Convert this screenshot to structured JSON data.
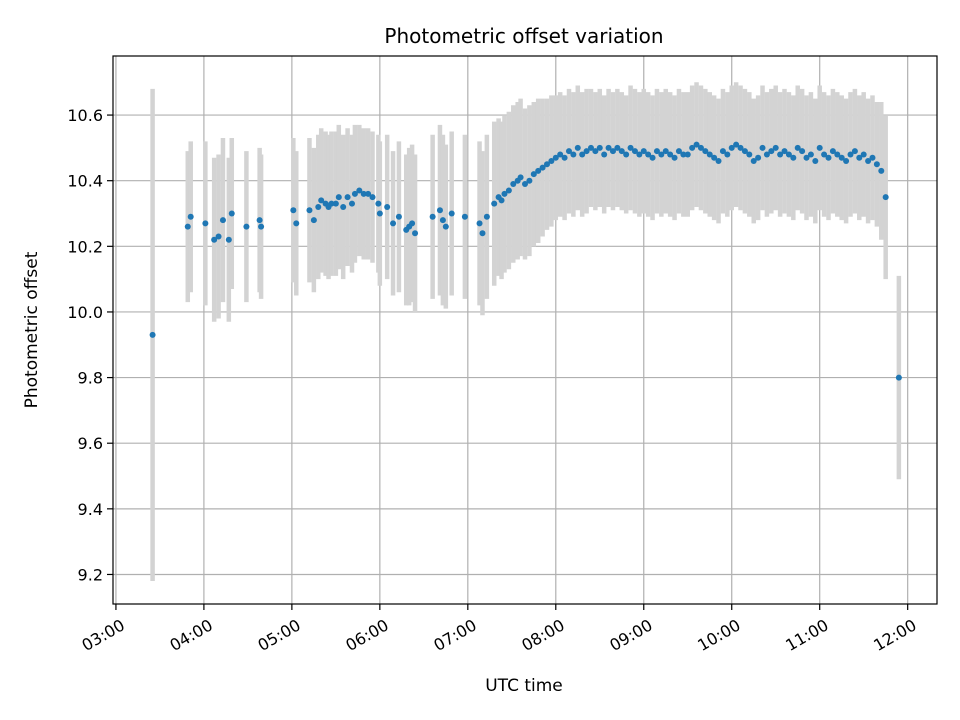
{
  "chart_data": {
    "type": "scatter",
    "title": "Photometric offset variation",
    "xlabel": "UTC time",
    "ylabel": "Photometric offset",
    "xlim": [
      "02:58",
      "12:20"
    ],
    "ylim": [
      9.11,
      10.78
    ],
    "x_ticks": [
      "03:00",
      "04:00",
      "05:00",
      "06:00",
      "07:00",
      "08:00",
      "09:00",
      "10:00",
      "11:00",
      "12:00"
    ],
    "y_ticks": [
      "9.2",
      "9.4",
      "9.6",
      "9.8",
      "10.0",
      "10.2",
      "10.4",
      "10.6"
    ],
    "grid": true,
    "colors": {
      "point": "#1f77b4",
      "errorbar": "#d3d3d3",
      "grid": "#b0b0b0"
    },
    "series": [
      {
        "x": [
          "03:25",
          "03:49",
          "03:51",
          "04:01",
          "04:07",
          "04:10",
          "04:13",
          "04:17",
          "04:19",
          "04:29",
          "04:38",
          "04:39",
          "05:01",
          "05:03",
          "05:12",
          "05:15",
          "05:18",
          "05:20",
          "05:23",
          "05:25",
          "05:27",
          "05:30",
          "05:32",
          "05:35",
          "05:38",
          "05:41",
          "05:43",
          "05:46",
          "05:49",
          "05:52",
          "05:55",
          "05:59",
          "06:00",
          "06:05",
          "06:09",
          "06:13",
          "06:18",
          "06:20",
          "06:22",
          "06:24",
          "06:36",
          "06:41",
          "06:43",
          "06:45",
          "06:49",
          "06:58",
          "07:08",
          "07:10",
          "07:13",
          "07:18",
          "07:21",
          "07:23",
          "07:25",
          "07:28",
          "07:31",
          "07:34",
          "07:36",
          "07:39",
          "07:42",
          "07:45",
          "07:48",
          "07:51",
          "07:54",
          "07:57",
          "08:00",
          "08:03",
          "08:06",
          "08:09",
          "08:12",
          "08:15",
          "08:18",
          "08:21",
          "08:24",
          "08:27",
          "08:30",
          "08:33",
          "08:36",
          "08:39",
          "08:42",
          "08:45",
          "08:48",
          "08:51",
          "08:54",
          "08:57",
          "09:00",
          "09:03",
          "09:06",
          "09:09",
          "09:12",
          "09:15",
          "09:18",
          "09:21",
          "09:24",
          "09:27",
          "09:30",
          "09:33",
          "09:36",
          "09:39",
          "09:42",
          "09:45",
          "09:48",
          "09:51",
          "09:54",
          "09:57",
          "10:00",
          "10:03",
          "10:06",
          "10:09",
          "10:12",
          "10:15",
          "10:18",
          "10:21",
          "10:24",
          "10:27",
          "10:30",
          "10:33",
          "10:36",
          "10:39",
          "10:42",
          "10:45",
          "10:48",
          "10:51",
          "10:54",
          "10:57",
          "11:00",
          "11:03",
          "11:06",
          "11:09",
          "11:12",
          "11:15",
          "11:18",
          "11:21",
          "11:24",
          "11:27",
          "11:30",
          "11:33",
          "11:36",
          "11:39",
          "11:42",
          "11:45",
          "11:54"
        ],
        "y": [
          9.93,
          10.26,
          10.29,
          10.27,
          10.22,
          10.23,
          10.28,
          10.22,
          10.3,
          10.26,
          10.28,
          10.26,
          10.31,
          10.27,
          10.31,
          10.28,
          10.32,
          10.34,
          10.33,
          10.32,
          10.33,
          10.33,
          10.35,
          10.32,
          10.35,
          10.33,
          10.36,
          10.37,
          10.36,
          10.36,
          10.35,
          10.33,
          10.3,
          10.32,
          10.27,
          10.29,
          10.25,
          10.26,
          10.27,
          10.24,
          10.29,
          10.31,
          10.28,
          10.26,
          10.3,
          10.29,
          10.27,
          10.24,
          10.29,
          10.33,
          10.35,
          10.34,
          10.36,
          10.37,
          10.39,
          10.4,
          10.41,
          10.39,
          10.4,
          10.42,
          10.43,
          10.44,
          10.45,
          10.46,
          10.47,
          10.48,
          10.47,
          10.49,
          10.48,
          10.5,
          10.48,
          10.49,
          10.5,
          10.49,
          10.5,
          10.48,
          10.5,
          10.49,
          10.5,
          10.49,
          10.48,
          10.5,
          10.49,
          10.48,
          10.49,
          10.48,
          10.47,
          10.49,
          10.48,
          10.49,
          10.48,
          10.47,
          10.49,
          10.48,
          10.48,
          10.5,
          10.51,
          10.5,
          10.49,
          10.48,
          10.47,
          10.46,
          10.49,
          10.48,
          10.5,
          10.51,
          10.5,
          10.49,
          10.48,
          10.46,
          10.47,
          10.5,
          10.48,
          10.49,
          10.5,
          10.48,
          10.49,
          10.48,
          10.47,
          10.5,
          10.49,
          10.47,
          10.48,
          10.46,
          10.5,
          10.48,
          10.47,
          10.49,
          10.48,
          10.47,
          10.46,
          10.48,
          10.49,
          10.47,
          10.48,
          10.46,
          10.47,
          10.45,
          10.43,
          10.35,
          9.8
        ],
        "yerr": [
          0.75,
          0.23,
          0.23,
          0.25,
          0.25,
          0.25,
          0.25,
          0.25,
          0.23,
          0.23,
          0.22,
          0.22,
          0.22,
          0.22,
          0.22,
          0.22,
          0.22,
          0.22,
          0.22,
          0.22,
          0.22,
          0.22,
          0.22,
          0.22,
          0.21,
          0.21,
          0.21,
          0.2,
          0.2,
          0.2,
          0.2,
          0.21,
          0.22,
          0.22,
          0.22,
          0.23,
          0.23,
          0.24,
          0.24,
          0.24,
          0.25,
          0.26,
          0.26,
          0.25,
          0.25,
          0.25,
          0.25,
          0.25,
          0.25,
          0.25,
          0.24,
          0.24,
          0.24,
          0.24,
          0.24,
          0.24,
          0.24,
          0.23,
          0.23,
          0.22,
          0.22,
          0.21,
          0.2,
          0.2,
          0.19,
          0.19,
          0.19,
          0.19,
          0.19,
          0.19,
          0.19,
          0.19,
          0.18,
          0.18,
          0.18,
          0.18,
          0.18,
          0.18,
          0.18,
          0.18,
          0.18,
          0.19,
          0.19,
          0.19,
          0.19,
          0.19,
          0.19,
          0.19,
          0.19,
          0.19,
          0.19,
          0.19,
          0.19,
          0.19,
          0.19,
          0.19,
          0.19,
          0.19,
          0.19,
          0.19,
          0.19,
          0.19,
          0.19,
          0.19,
          0.19,
          0.19,
          0.19,
          0.19,
          0.19,
          0.19,
          0.19,
          0.19,
          0.19,
          0.19,
          0.19,
          0.19,
          0.19,
          0.19,
          0.19,
          0.19,
          0.19,
          0.19,
          0.19,
          0.19,
          0.19,
          0.19,
          0.19,
          0.19,
          0.19,
          0.19,
          0.19,
          0.19,
          0.19,
          0.19,
          0.19,
          0.19,
          0.19,
          0.19,
          0.21,
          0.25,
          0.31
        ]
      }
    ]
  }
}
